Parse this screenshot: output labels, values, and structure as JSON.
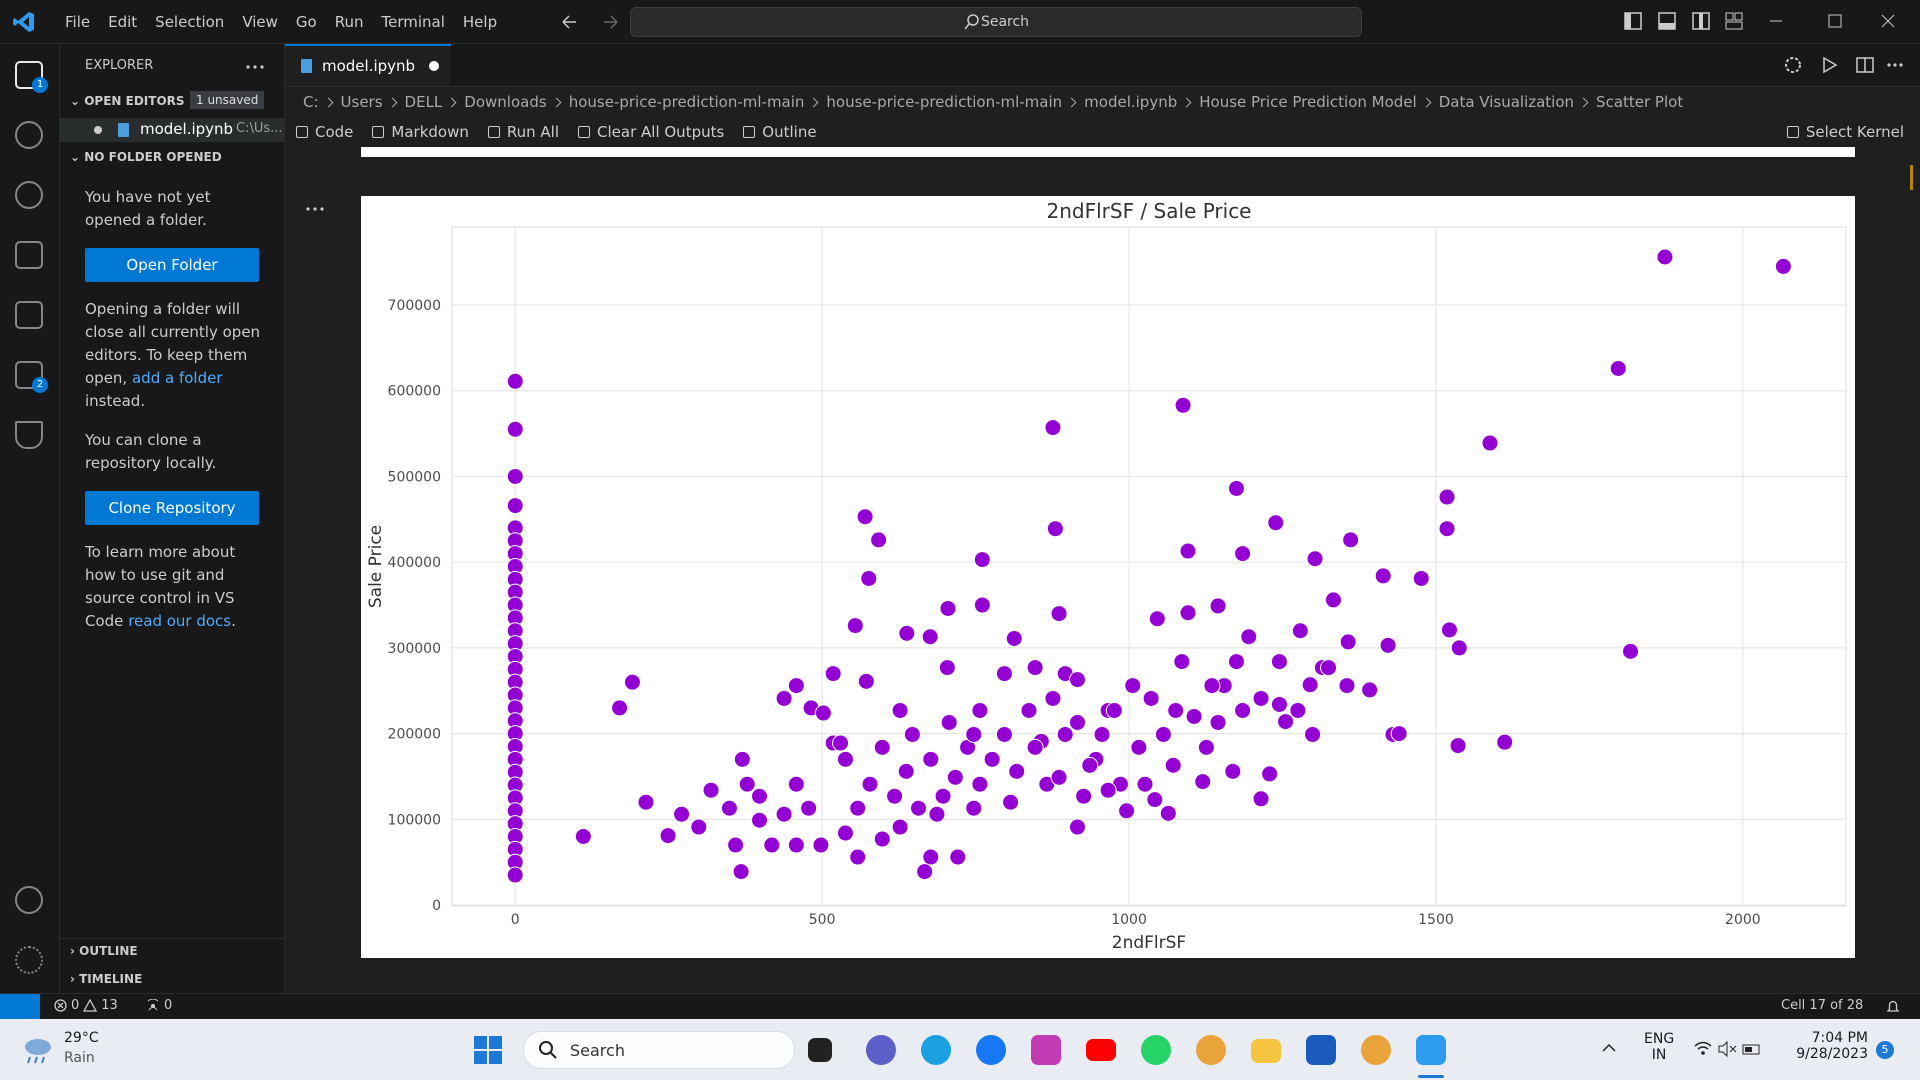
{
  "title_bar": {
    "menu": [
      "File",
      "Edit",
      "Selection",
      "View",
      "Go",
      "Run",
      "Terminal",
      "Help"
    ],
    "search": "Search"
  },
  "activity_bar": {
    "explorer_badge": "1",
    "extensions_badge": "2"
  },
  "sidebar": {
    "title": "EXPLORER",
    "open_editors": "OPEN EDITORS",
    "unsaved": "1 unsaved",
    "open_file": "model.ipynb",
    "open_file_path": "C:\\Us...",
    "no_folder": "NO FOLDER OPENED",
    "no_folder_text": "You have not yet opened a folder.",
    "open_folder": "Open Folder",
    "warning_before": "Opening a folder will close all currently open editors. To keep them open,",
    "warning_link": "add a folder",
    "warning_after": "instead.",
    "clone_text": "You can clone a repository locally.",
    "clone_button": "Clone Repository",
    "learn_before": "To learn more about how to use git and source control in VS Code",
    "learn_link": "read our docs",
    "learn_after": ".",
    "outline": "OUTLINE",
    "timeline": "TIMELINE"
  },
  "tab": {
    "name": "model.ipynb"
  },
  "breadcrumb": [
    "C:",
    "Users",
    "DELL",
    "Downloads",
    "house-price-prediction-ml-main",
    "house-price-prediction-ml-main",
    "model.ipynb",
    "House Price Prediction Model",
    "Data Visualization",
    "Scatter Plot"
  ],
  "toolbar": {
    "items": [
      "Code",
      "Markdown",
      "Run All",
      "Clear All Outputs",
      "Outline"
    ],
    "kernel": "Select Kernel"
  },
  "chart_data": {
    "type": "scatter",
    "title": "2ndFlrSF / Sale Price",
    "x_label": "2ndFlrSF",
    "y_label": "Sale Price",
    "color": "#9400d3",
    "grid": true,
    "xlim": [
      -103,
      2168
    ],
    "ylim": [
      -1100,
      791000
    ],
    "xticks": [
      0,
      500,
      1000,
      1500,
      2000
    ],
    "yticks": [
      0,
      100000,
      200000,
      300000,
      400000,
      500000,
      600000,
      700000
    ],
    "x": [
      0,
      0,
      0,
      0,
      0,
      0,
      0,
      0,
      0,
      0,
      0,
      0,
      0,
      0,
      0,
      0,
      0,
      0,
      0,
      0,
      0,
      0,
      0,
      0,
      0,
      0,
      0,
      0,
      0,
      0,
      0,
      0,
      111,
      170,
      191,
      213,
      249,
      271,
      368,
      370,
      438,
      482,
      502,
      518,
      530,
      554,
      570,
      592,
      576,
      572,
      638,
      676,
      704,
      705,
      761,
      761,
      813,
      876,
      880,
      886,
      1088,
      1096,
      1175,
      1185,
      1239,
      1303,
      1361,
      1414,
      1476,
      1518,
      1518,
      1522,
      1538,
      1536,
      1588,
      1612,
      1797,
      1817,
      1873,
      2066,
      1422,
      1430,
      1440,
      1392,
      1357,
      1333,
      1295,
      1255,
      1215,
      1229,
      1169,
      1120,
      1064,
      1042,
      996,
      916,
      946,
      966,
      1006,
      1046,
      1096,
      1145,
      1195,
      1245,
      1279,
      1315,
      1355,
      1155,
      1106,
      1056,
      1016,
      458,
      478,
      498,
      538,
      558,
      578,
      598,
      618,
      637,
      657,
      677,
      697,
      717,
      737,
      757,
      777,
      797,
      817,
      837,
      857,
      876,
      896,
      916,
      936,
      956,
      976,
      986,
      677,
      721,
      667,
      538,
      598,
      647,
      707,
      757,
      797,
      847,
      896,
      916,
      418,
      438,
      398,
      378,
      349,
      319,
      299,
      359,
      398,
      458,
      558,
      627,
      687,
      747,
      807,
      866,
      926,
      966,
      1026,
      1072,
      1126,
      1145,
      1185,
      1215,
      1245,
      1275,
      1299,
      1325,
      1175,
      1135,
      1086,
      1036,
      1076,
      518,
      458,
      627,
      747,
      847,
      886
    ],
    "values": [
      611000,
      555000,
      500000,
      466000,
      440000,
      425000,
      410000,
      395000,
      380000,
      365000,
      350000,
      335000,
      320000,
      305000,
      290000,
      275000,
      260000,
      245000,
      230000,
      215000,
      200000,
      185000,
      170000,
      155000,
      140000,
      125000,
      110000,
      95000,
      80000,
      65000,
      50000,
      35000,
      80000,
      230000,
      260000,
      120000,
      81000,
      106000,
      39000,
      170000,
      241000,
      230000,
      224000,
      189000,
      189000,
      326000,
      453000,
      426000,
      381000,
      261000,
      317000,
      313000,
      277000,
      346000,
      403000,
      350000,
      311000,
      557000,
      439000,
      340000,
      583000,
      413000,
      486000,
      410000,
      446000,
      404000,
      426000,
      384000,
      381000,
      476000,
      439000,
      321000,
      300000,
      186000,
      539000,
      190000,
      626000,
      296000,
      756000,
      745000,
      303000,
      199000,
      200000,
      251000,
      307000,
      356000,
      257000,
      214000,
      124000,
      153000,
      156000,
      144000,
      107000,
      123000,
      110000,
      91000,
      170000,
      227000,
      256000,
      334000,
      341000,
      349000,
      313000,
      284000,
      320000,
      277000,
      256000,
      256000,
      220000,
      199000,
      184000,
      141000,
      113000,
      70000,
      84000,
      113000,
      141000,
      77000,
      127000,
      156000,
      113000,
      170000,
      127000,
      149000,
      184000,
      141000,
      170000,
      199000,
      156000,
      227000,
      191000,
      241000,
      199000,
      213000,
      163000,
      199000,
      227000,
      141000,
      56000,
      56000,
      39000,
      170000,
      184000,
      199000,
      213000,
      227000,
      270000,
      277000,
      270000,
      263000,
      70000,
      106000,
      127000,
      141000,
      113000,
      134000,
      91000,
      70000,
      99000,
      70000,
      56000,
      91000,
      106000,
      113000,
      120000,
      141000,
      127000,
      134000,
      141000,
      163000,
      184000,
      213000,
      227000,
      241000,
      234000,
      227000,
      199000,
      277000,
      284000,
      256000,
      284000,
      241000,
      227000,
      270000,
      256000,
      227000,
      199000,
      184000,
      149000
    ]
  },
  "status_bar": {
    "errors": "0",
    "warnings": "13",
    "ports": "0",
    "cell": "Cell 17 of 28"
  },
  "taskbar": {
    "temperature": "29°C",
    "weather": "Rain",
    "search": "Search",
    "language": "ENG",
    "region": "IN",
    "time": "7:04 PM",
    "date": "9/28/2023",
    "notifications": "5"
  }
}
